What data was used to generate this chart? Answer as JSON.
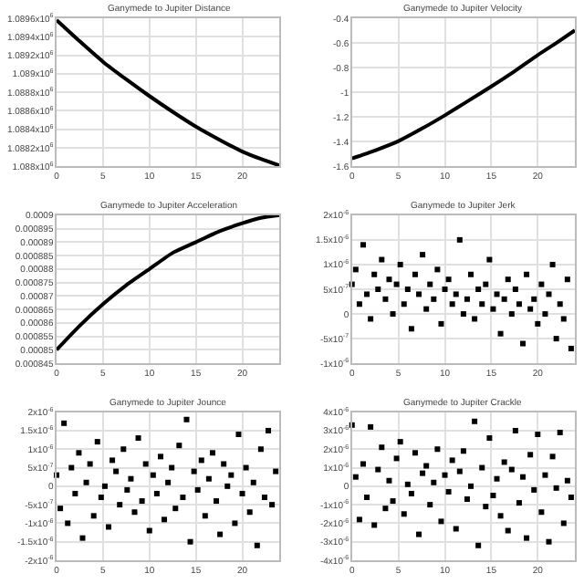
{
  "chart_data": [
    {
      "type": "line",
      "title": "Ganymede to Jupiter Distance",
      "marker": "none",
      "grid": true,
      "xlim": [
        0,
        24
      ],
      "xticks": [
        0,
        5,
        10,
        15,
        20
      ],
      "ylim": [
        1088000,
        1089600
      ],
      "yticks": [
        {
          "value": 1088000,
          "label": "1.088x10$^{6}$"
        },
        {
          "value": 1088200,
          "label": "1.0882x10$^{6}$"
        },
        {
          "value": 1088400,
          "label": "1.0884x10$^{6}$"
        },
        {
          "value": 1088600,
          "label": "1.0886x10$^{6}$"
        },
        {
          "value": 1088800,
          "label": "1.0888x10$^{6}$"
        },
        {
          "value": 1089000,
          "label": "1.089x10$^{6}$"
        },
        {
          "value": 1089200,
          "label": "1.0892x10$^{6}$"
        },
        {
          "value": 1089400,
          "label": "1.0894x10$^{6}$"
        },
        {
          "value": 1089600,
          "label": "1.0896x10$^{6}$"
        }
      ],
      "x": [
        0,
        2.5,
        5,
        7.5,
        10,
        12.5,
        15,
        17.5,
        20,
        22,
        24
      ],
      "series": [
        {
          "color": "#000000",
          "values": [
            1089580,
            1089350,
            1089130,
            1088940,
            1088760,
            1088590,
            1088430,
            1088290,
            1088160,
            1088080,
            1088010
          ]
        }
      ]
    },
    {
      "type": "line",
      "title": "Ganymede to Jupiter Velocity",
      "marker": "none",
      "grid": true,
      "xlim": [
        0,
        24
      ],
      "xticks": [
        0,
        5,
        10,
        15,
        20
      ],
      "ylim": [
        -1.6,
        -0.4
      ],
      "yticks": [
        -1.6,
        -1.4,
        -1.2,
        -1,
        -0.8,
        -0.6,
        -0.4
      ],
      "x": [
        0,
        2.5,
        5,
        7.5,
        10,
        12.5,
        15,
        17.5,
        20,
        22,
        24
      ],
      "series": [
        {
          "color": "#000000",
          "values": [
            -1.535,
            -1.47,
            -1.395,
            -1.295,
            -1.186,
            -1.07,
            -0.953,
            -0.83,
            -0.698,
            -0.6,
            -0.498
          ]
        }
      ]
    },
    {
      "type": "line",
      "title": "Ganymede to Jupiter Acceleration",
      "marker": "none",
      "grid": true,
      "xlim": [
        0,
        24
      ],
      "xticks": [
        0,
        5,
        10,
        15,
        20
      ],
      "ylim": [
        0.000845,
        0.0009
      ],
      "yticks": [
        0.000845,
        0.00085,
        0.000855,
        0.00086,
        0.000865,
        0.00087,
        0.000875,
        0.00088,
        0.000885,
        0.00089,
        0.000895,
        0.0009
      ],
      "x": [
        0,
        2.5,
        5,
        7.5,
        10,
        12.5,
        15,
        17.5,
        20,
        22,
        24
      ],
      "series": [
        {
          "color": "#000000",
          "values": [
            0.00085,
            0.000859,
            0.000867,
            0.000874,
            0.00088,
            0.000886,
            0.00089,
            0.000894,
            0.000897,
            0.000899,
            0.0009
          ]
        }
      ]
    },
    {
      "type": "scatter",
      "title": "Ganymede to Jupiter Jerk",
      "marker": "square",
      "grid": true,
      "xlim": [
        0,
        24
      ],
      "xticks": [
        0,
        5,
        10,
        15,
        20
      ],
      "ylim": [
        -1e-06,
        2e-06
      ],
      "yticks": [
        {
          "value": -1e-06,
          "label": "-1x10$^{-6}$"
        },
        {
          "value": -5e-07,
          "label": "-5x10$^{-7}$"
        },
        {
          "value": 0,
          "label": "0"
        },
        {
          "value": 5e-07,
          "label": "5x10$^{-7}$"
        },
        {
          "value": 1e-06,
          "label": "1x10$^{-6}$"
        },
        {
          "value": 1.5e-06,
          "label": "1.5x10$^{-6}$"
        },
        {
          "value": 2e-06,
          "label": "2x10$^{-6}$"
        }
      ],
      "x": [
        0,
        0.4,
        0.8,
        1.2,
        1.6,
        2,
        2.4,
        2.8,
        3.2,
        3.6,
        4,
        4.4,
        4.8,
        5.2,
        5.6,
        6,
        6.4,
        6.8,
        7.2,
        7.6,
        8,
        8.4,
        8.8,
        9.2,
        9.6,
        10,
        10.4,
        10.8,
        11.2,
        11.6,
        12,
        12.4,
        12.8,
        13.2,
        13.6,
        14,
        14.4,
        14.8,
        15.2,
        15.6,
        16,
        16.4,
        16.8,
        17.2,
        17.6,
        18,
        18.4,
        18.8,
        19.2,
        19.6,
        20,
        20.4,
        20.8,
        21.2,
        21.6,
        22,
        22.4,
        22.8,
        23.2,
        23.6
      ],
      "series": [
        {
          "color": "#000000",
          "values": [
            6e-07,
            9e-07,
            2e-07,
            1.4e-06,
            4e-07,
            -1e-07,
            8e-07,
            5e-07,
            1.1e-06,
            3e-07,
            7e-07,
            0,
            6e-07,
            1e-06,
            2e-07,
            5e-07,
            -3e-07,
            8e-07,
            4e-07,
            1.2e-06,
            1e-07,
            6e-07,
            3e-07,
            9e-07,
            -2e-07,
            5e-07,
            7e-07,
            2e-07,
            4e-07,
            1.5e-06,
            0,
            3e-07,
            8e-07,
            -1e-07,
            5e-07,
            2e-07,
            6e-07,
            1.1e-06,
            1e-07,
            4e-07,
            -4e-07,
            3e-07,
            7e-07,
            0,
            5e-07,
            2e-07,
            -6e-07,
            8e-07,
            1e-07,
            3e-07,
            -2e-07,
            6e-07,
            0,
            4e-07,
            1e-06,
            -5e-07,
            2e-07,
            -1e-07,
            7e-07,
            -7e-07
          ]
        }
      ]
    },
    {
      "type": "scatter",
      "title": "Ganymede to Jupiter Jounce",
      "marker": "square",
      "grid": true,
      "xlim": [
        0,
        24
      ],
      "xticks": [
        0,
        5,
        10,
        15,
        20
      ],
      "ylim": [
        -2e-06,
        2e-06
      ],
      "yticks": [
        {
          "value": -2e-06,
          "label": "-2x10$^{-6}$"
        },
        {
          "value": -1.5e-06,
          "label": "-1.5x10$^{-6}$"
        },
        {
          "value": -1e-06,
          "label": "-1x10$^{-6}$"
        },
        {
          "value": -5e-07,
          "label": "-5x10$^{-7}$"
        },
        {
          "value": 0,
          "label": "0"
        },
        {
          "value": 5e-07,
          "label": "5x10$^{-7}$"
        },
        {
          "value": 1e-06,
          "label": "1x10$^{-6}$"
        },
        {
          "value": 1.5e-06,
          "label": "1.5x10$^{-6}$"
        },
        {
          "value": 2e-06,
          "label": "2x10$^{-6}$"
        }
      ],
      "x": [
        0,
        0.4,
        0.8,
        1.2,
        1.6,
        2,
        2.4,
        2.8,
        3.2,
        3.6,
        4,
        4.4,
        4.8,
        5.2,
        5.6,
        6,
        6.4,
        6.8,
        7.2,
        7.6,
        8,
        8.4,
        8.8,
        9.2,
        9.6,
        10,
        10.4,
        10.8,
        11.2,
        11.6,
        12,
        12.4,
        12.8,
        13.2,
        13.6,
        14,
        14.4,
        14.8,
        15.2,
        15.6,
        16,
        16.4,
        16.8,
        17.2,
        17.6,
        18,
        18.4,
        18.8,
        19.2,
        19.6,
        20,
        20.4,
        20.8,
        21.2,
        21.6,
        22,
        22.4,
        22.8,
        23.2,
        23.6
      ],
      "series": [
        {
          "color": "#000000",
          "values": [
            3e-07,
            -6e-07,
            1.7e-06,
            -1e-06,
            5e-07,
            -2e-07,
            9e-07,
            -1.4e-06,
            1e-07,
            6e-07,
            -8e-07,
            1.2e-06,
            -3e-07,
            0,
            -1.1e-06,
            7e-07,
            4e-07,
            -5e-07,
            1e-06,
            -1e-07,
            2e-07,
            -7e-07,
            1.3e-06,
            -4e-07,
            6e-07,
            -1.2e-06,
            3e-07,
            -2e-07,
            8e-07,
            -9e-07,
            1e-07,
            5e-07,
            -6e-07,
            1.1e-06,
            -3e-07,
            1.8e-06,
            -1.5e-06,
            4e-07,
            -1e-07,
            7e-07,
            -8e-07,
            2e-07,
            9e-07,
            -4e-07,
            -1.3e-06,
            6e-07,
            0,
            3e-07,
            -1e-06,
            1.4e-06,
            -2e-07,
            5e-07,
            -7e-07,
            1e-07,
            -1.6e-06,
            1e-06,
            -3e-07,
            1.5e-06,
            -5e-07,
            4e-07
          ]
        }
      ]
    },
    {
      "type": "scatter",
      "title": "Ganymede to Jupiter Crackle",
      "marker": "square",
      "grid": true,
      "xlim": [
        0,
        24
      ],
      "xticks": [
        0,
        5,
        10,
        15,
        20
      ],
      "ylim": [
        -4e-06,
        4e-06
      ],
      "yticks": [
        {
          "value": -4e-06,
          "label": "-4x10$^{-6}$"
        },
        {
          "value": -3e-06,
          "label": "-3x10$^{-6}$"
        },
        {
          "value": -2e-06,
          "label": "-2x10$^{-6}$"
        },
        {
          "value": -1e-06,
          "label": "-1x10$^{-6}$"
        },
        {
          "value": 0,
          "label": "0"
        },
        {
          "value": 1e-06,
          "label": "1x10$^{-6}$"
        },
        {
          "value": 2e-06,
          "label": "2x10$^{-6}$"
        },
        {
          "value": 3e-06,
          "label": "3x10$^{-6}$"
        },
        {
          "value": 4e-06,
          "label": "4x10$^{-6}$"
        }
      ],
      "x": [
        0,
        0.4,
        0.8,
        1.2,
        1.6,
        2,
        2.4,
        2.8,
        3.2,
        3.6,
        4,
        4.4,
        4.8,
        5.2,
        5.6,
        6,
        6.4,
        6.8,
        7.2,
        7.6,
        8,
        8.4,
        8.8,
        9.2,
        9.6,
        10,
        10.4,
        10.8,
        11.2,
        11.6,
        12,
        12.4,
        12.8,
        13.2,
        13.6,
        14,
        14.4,
        14.8,
        15.2,
        15.6,
        16,
        16.4,
        16.8,
        17.2,
        17.6,
        18,
        18.4,
        18.8,
        19.2,
        19.6,
        20,
        20.4,
        20.8,
        21.2,
        21.6,
        22,
        22.4,
        22.8,
        23.2,
        23.6
      ],
      "series": [
        {
          "color": "#000000",
          "values": [
            3.3e-06,
            5e-07,
            -1.8e-06,
            1.2e-06,
            -6e-07,
            3.2e-06,
            -2.1e-06,
            9e-07,
            2.1e-06,
            -1.2e-06,
            3e-07,
            -8e-07,
            1.5e-06,
            2.4e-06,
            -1.5e-06,
            1e-07,
            -4e-07,
            1.8e-06,
            -2.6e-06,
            7e-07,
            1.1e-06,
            -1e-06,
            2e-07,
            2e-06,
            -1.9e-06,
            6e-07,
            -3e-07,
            1.4e-06,
            -2.3e-06,
            8e-07,
            1.9e-06,
            -7e-07,
            0,
            3.5e-06,
            -3.2e-06,
            1e-06,
            -1.1e-06,
            2.6e-06,
            -5e-07,
            4e-07,
            -1.6e-06,
            1.3e-06,
            -2.4e-06,
            9e-07,
            3e-06,
            -9e-07,
            5e-07,
            -2.8e-06,
            1.7e-06,
            -2e-07,
            2.8e-06,
            -1.4e-06,
            6e-07,
            -3e-06,
            1.6e-06,
            -1e-07,
            2.9e-06,
            -2e-06,
            3e-07,
            -6e-07
          ]
        }
      ]
    }
  ]
}
